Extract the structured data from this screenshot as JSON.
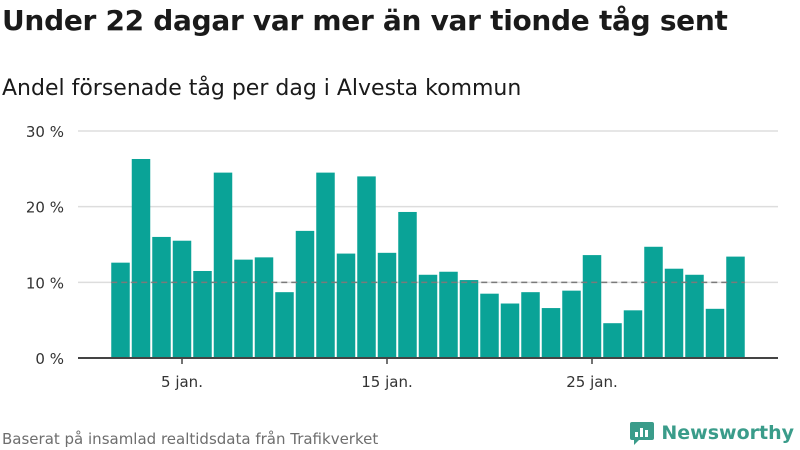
{
  "header": {
    "title": "Under 22 dagar var mer än var tionde tåg sent",
    "subtitle": "Andel försenade tåg per dag i Alvesta kommun"
  },
  "footer": {
    "source": "Baserat på insamlad realtidsdata från Trafikverket",
    "brand": "Newsworthy"
  },
  "colors": {
    "bar": "#0aa397",
    "grid": "#dddddd",
    "axis": "#444444",
    "reference_line": "#7a7a7a",
    "brand": "#3a9c8a"
  },
  "chart_data": {
    "type": "bar",
    "x_start_day": 2,
    "values": [
      12.6,
      26.3,
      16.0,
      15.5,
      11.5,
      24.5,
      13.0,
      13.3,
      8.7,
      16.8,
      24.5,
      13.8,
      24.0,
      13.9,
      19.3,
      11.0,
      11.4,
      10.3,
      8.5,
      7.2,
      8.7,
      6.6,
      8.9,
      13.6,
      4.6,
      6.3,
      14.7,
      11.8,
      11.0,
      6.5,
      13.4
    ],
    "xlabel": "",
    "ylabel": "",
    "ylim": [
      0,
      30
    ],
    "y_ticks": [
      0,
      10,
      20,
      30
    ],
    "y_tick_labels": [
      "0 %",
      "10 %",
      "20 %",
      "30 %"
    ],
    "x_ticks": [
      5,
      15,
      25
    ],
    "x_tick_labels": [
      "5 jan.",
      "15 jan.",
      "25 jan."
    ],
    "reference_line": 10,
    "grid": true,
    "legend": "none"
  }
}
